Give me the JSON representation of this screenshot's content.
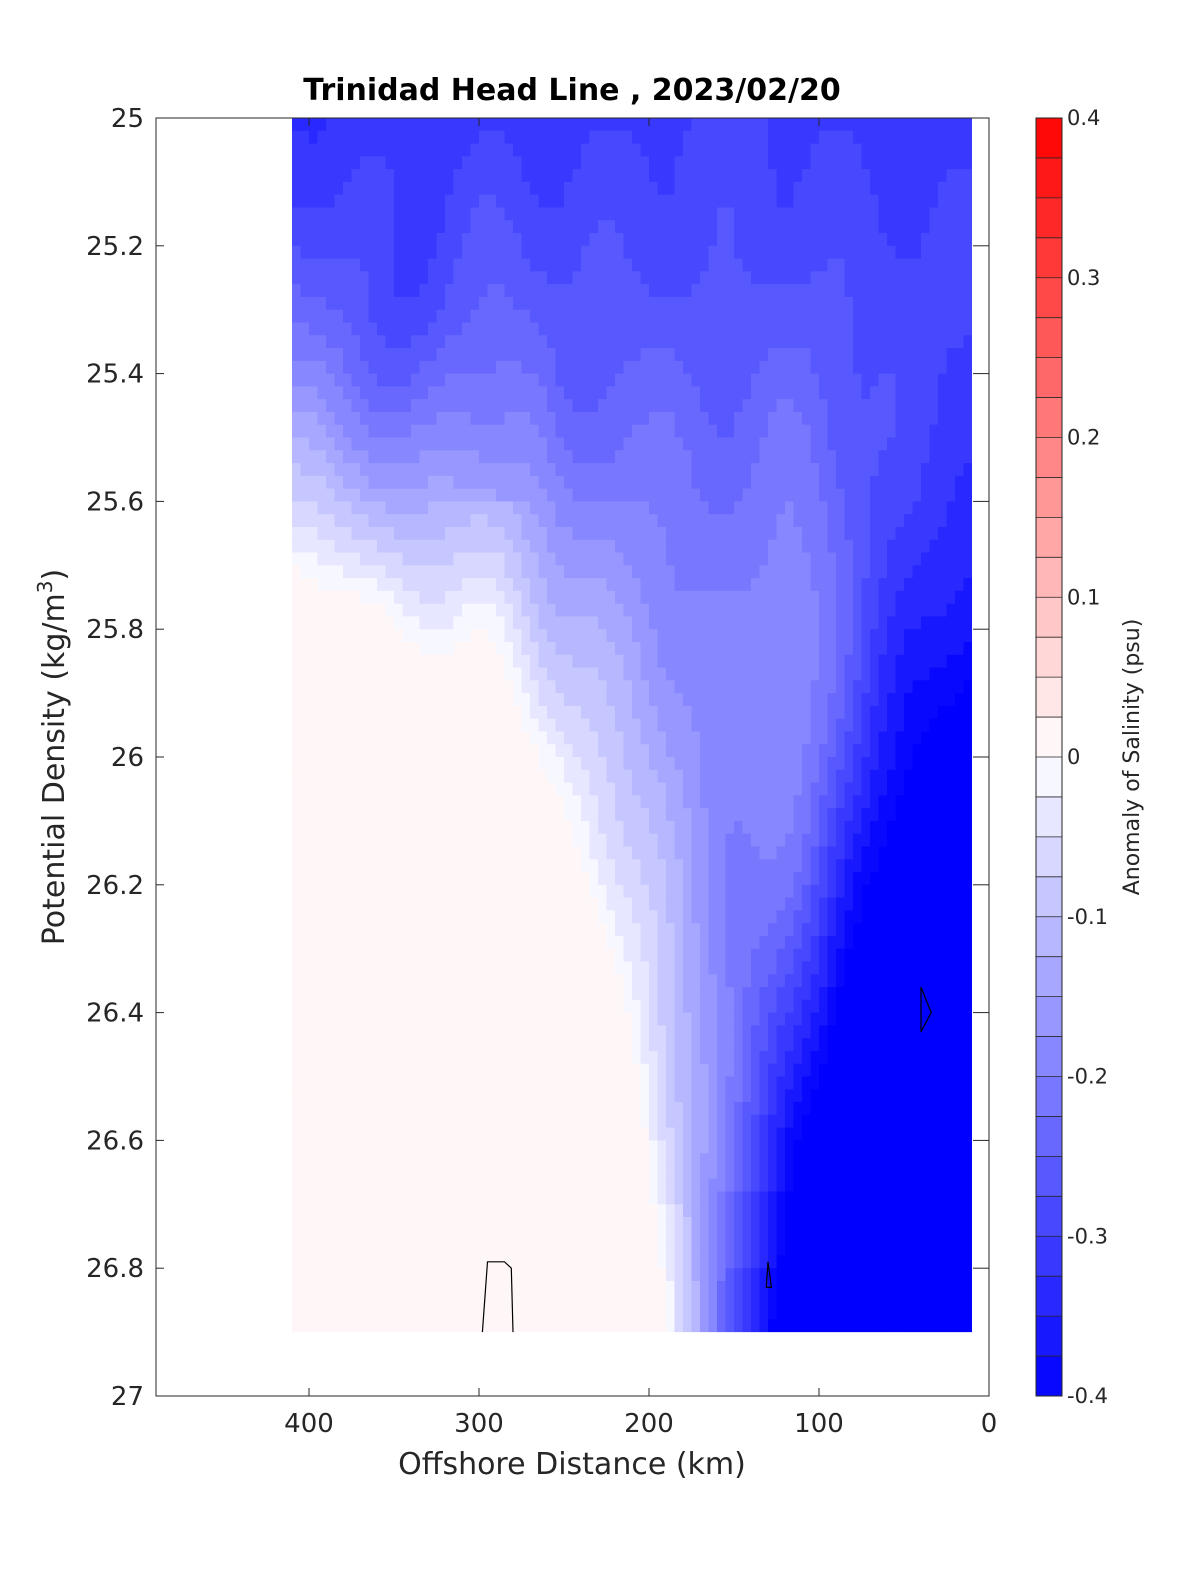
{
  "chart_data": {
    "type": "heatmap",
    "subtype": "filled-contour",
    "title": "Trinidad Head Line , 2023/02/20",
    "xlabel": "Offshore Distance (km)",
    "ylabel": "Potential Density (kg/m",
    "ylabel_sup": "3",
    "ylabel_end": ")",
    "xlim": [
      490,
      0
    ],
    "x_reversed": true,
    "ylim": [
      25,
      27
    ],
    "y_reversed": true,
    "x_ticks": [
      400,
      300,
      200,
      100,
      0
    ],
    "y_ticks": [
      25,
      25.2,
      25.4,
      25.6,
      25.8,
      26,
      26.2,
      26.4,
      26.6,
      26.8,
      27
    ],
    "x_tick_labels": [
      "400",
      "300",
      "200",
      "100",
      "0"
    ],
    "y_tick_labels": [
      "25",
      "25.2",
      "25.4",
      "25.6",
      "25.8",
      "26",
      "26.2",
      "26.4",
      "26.6",
      "26.8",
      "27"
    ],
    "colorbar": {
      "label": "Anomaly of Salinity (psu)",
      "range": [
        -0.4,
        0.4
      ],
      "step": 0.025,
      "tick_values": [
        0.4,
        0.3,
        0.2,
        0.1,
        0,
        -0.1,
        -0.2,
        -0.3,
        -0.4
      ],
      "tick_labels": [
        "0.4",
        "0.3",
        "0.2",
        "0.1",
        "0",
        "-0.1",
        "-0.2",
        "-0.3",
        "-0.4"
      ],
      "low_color": "#0000ff",
      "mid_color": "#ffffff",
      "high_color": "#ff0000"
    },
    "data_extent": {
      "x_range": [
        410,
        10
      ],
      "y_range": [
        25,
        26.9
      ]
    },
    "contours": [
      {
        "level": -0.35,
        "center": [
          345,
          25.25
        ],
        "x_half": 18,
        "y_half": 0.13
      },
      {
        "level": -0.3,
        "center": [
          345,
          25.28
        ],
        "x_half": 40,
        "y_half": 0.27
      },
      {
        "level": -0.3,
        "center": [
          245,
          25.36
        ],
        "x_half": 10,
        "y_half": 0.09
      },
      {
        "level": -0.275,
        "center": [
          245,
          25.4
        ],
        "x_half": 20,
        "y_half": 0.22
      },
      {
        "level": -0.35,
        "center": [
          115,
          25.02
        ],
        "x_half": 15,
        "y_half": 0.06
      },
      {
        "level": -0.3,
        "center": [
          130,
          25.05
        ],
        "x_half": 45,
        "y_half": 0.14
      },
      {
        "level": -0.275,
        "center": [
          165,
          25.08
        ],
        "x_half": 90,
        "y_half": 0.2
      }
    ],
    "zero_contours": [
      {
        "points": [
          [
            298,
            26.9
          ],
          [
            295,
            26.79
          ],
          [
            285,
            26.79
          ],
          [
            281,
            26.8
          ],
          [
            280,
            26.9
          ]
        ]
      },
      {
        "points": [
          [
            130,
            26.79
          ],
          [
            128,
            26.83
          ],
          [
            131,
            26.83
          ],
          [
            130,
            26.79
          ]
        ]
      },
      {
        "points": [
          [
            40,
            26.36
          ],
          [
            34,
            26.4
          ],
          [
            40,
            26.43
          ],
          [
            40,
            26.36
          ]
        ]
      }
    ]
  }
}
